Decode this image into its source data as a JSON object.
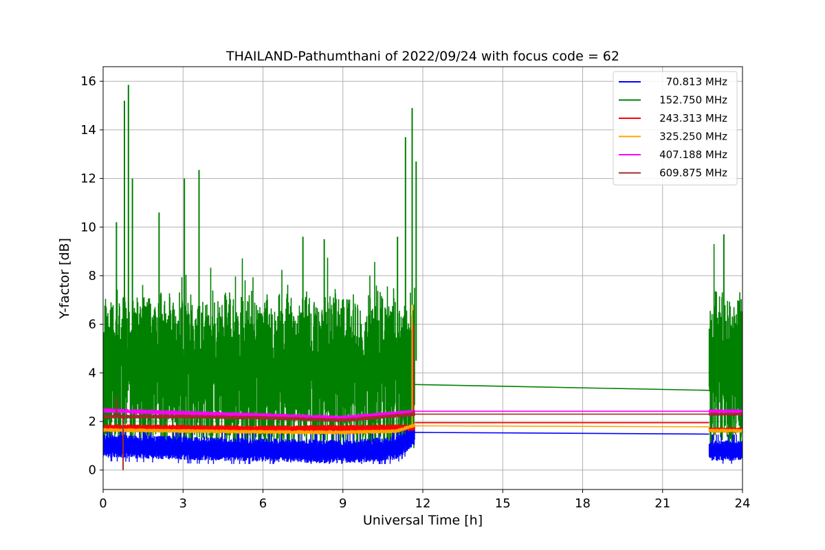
{
  "chart_data": {
    "type": "line",
    "title": "THAILAND-Pathumthani of 2022/09/24 with focus code = 62",
    "xlabel": "Universal Time [h]",
    "ylabel": "Y-factor [dB]",
    "xlim": [
      0,
      24
    ],
    "ylim": [
      -0.8,
      16.6
    ],
    "xticks": [
      0,
      3,
      6,
      9,
      12,
      15,
      18,
      21,
      24
    ],
    "yticks": [
      0,
      2,
      4,
      6,
      8,
      10,
      12,
      14,
      16
    ],
    "grid": true,
    "legend_position": "top-right",
    "series": [
      {
        "name": "70.813 MHz",
        "color": "#0000ff",
        "segments": [
          {
            "x_start": 0,
            "x_end": 11.7,
            "base": 0.95,
            "noise": 0.35,
            "spike_max": 1.8,
            "trend": [
              [
                0,
                1.0
              ],
              [
                5,
                0.85
              ],
              [
                9,
                0.75
              ],
              [
                11,
                0.9
              ],
              [
                11.7,
                1.5
              ]
            ]
          },
          {
            "x_start": 22.75,
            "x_end": 24,
            "base": 0.8,
            "noise": 0.3,
            "spike_max": 1.6,
            "trend": [
              [
                22.75,
                0.8
              ],
              [
                24,
                0.8
              ]
            ]
          }
        ],
        "gap_line": [
          [
            11.7,
            1.55
          ],
          [
            22.75,
            1.48
          ]
        ]
      },
      {
        "name": "152.750 MHz",
        "color": "#008000",
        "segments": [
          {
            "x_start": 0,
            "x_end": 11.7,
            "base": 4.2,
            "noise": 2.6,
            "spike_max": 15.85,
            "trend": [
              [
                0,
                4.8
              ],
              [
                3,
                4.4
              ],
              [
                6,
                4.3
              ],
              [
                9,
                4.2
              ],
              [
                11.7,
                4.5
              ]
            ]
          },
          {
            "x_start": 22.75,
            "x_end": 24,
            "base": 4.5,
            "noise": 2.6,
            "spike_max": 9.7,
            "trend": [
              [
                22.75,
                4.5
              ],
              [
                24,
                4.5
              ]
            ]
          }
        ],
        "gap_line": [
          [
            11.7,
            3.52
          ],
          [
            22.75,
            3.28
          ]
        ],
        "peaks": [
          [
            0.8,
            15.2
          ],
          [
            0.95,
            15.85
          ],
          [
            1.1,
            12.0
          ],
          [
            3.6,
            12.35
          ],
          [
            3.05,
            12.0
          ],
          [
            11.35,
            13.7
          ],
          [
            11.6,
            14.9
          ],
          [
            11.75,
            12.7
          ],
          [
            2.1,
            10.6
          ],
          [
            0.5,
            10.2
          ],
          [
            7.5,
            9.6
          ],
          [
            8.3,
            9.5
          ],
          [
            11.05,
            9.6
          ],
          [
            23.3,
            9.7
          ]
        ]
      },
      {
        "name": "243.313 MHz",
        "color": "#ff0000",
        "segments": [
          {
            "x_start": 0,
            "x_end": 11.7,
            "base": 1.75,
            "noise": 0.1,
            "spike_max": 2.1,
            "trend": [
              [
                0,
                1.75
              ],
              [
                6,
                1.7
              ],
              [
                11.7,
                1.75
              ]
            ]
          },
          {
            "x_start": 22.75,
            "x_end": 24,
            "base": 1.65,
            "noise": 0.08,
            "spike_max": 1.9,
            "trend": [
              [
                22.75,
                1.65
              ],
              [
                24,
                1.65
              ]
            ]
          }
        ],
        "gap_line": [
          [
            11.7,
            1.95
          ],
          [
            22.75,
            1.95
          ]
        ]
      },
      {
        "name": "325.250 MHz",
        "color": "#ffa500",
        "segments": [
          {
            "x_start": 0,
            "x_end": 11.7,
            "base": 1.62,
            "noise": 0.06,
            "spike_max": 6.8,
            "trend": [
              [
                0,
                1.65
              ],
              [
                6,
                1.57
              ],
              [
                9,
                1.55
              ],
              [
                11,
                1.6
              ],
              [
                11.7,
                1.85
              ]
            ]
          },
          {
            "x_start": 22.75,
            "x_end": 24,
            "base": 1.62,
            "noise": 0.06,
            "spike_max": 1.8,
            "trend": [
              [
                22.75,
                1.62
              ],
              [
                24,
                1.62
              ]
            ]
          }
        ],
        "gap_line": [
          [
            11.7,
            1.82
          ],
          [
            22.75,
            1.78
          ]
        ]
      },
      {
        "name": "407.188 MHz",
        "color": "#ff00ff",
        "segments": [
          {
            "x_start": 0,
            "x_end": 11.7,
            "base": 2.3,
            "noise": 0.07,
            "spike_max": 2.7,
            "trend": [
              [
                0,
                2.45
              ],
              [
                3,
                2.35
              ],
              [
                6,
                2.25
              ],
              [
                9,
                2.15
              ],
              [
                11.7,
                2.4
              ]
            ]
          },
          {
            "x_start": 22.75,
            "x_end": 24,
            "base": 2.42,
            "noise": 0.06,
            "spike_max": 2.6,
            "trend": [
              [
                22.75,
                2.42
              ],
              [
                24,
                2.42
              ]
            ]
          }
        ],
        "gap_line": [
          [
            11.7,
            2.42
          ],
          [
            22.75,
            2.42
          ]
        ]
      },
      {
        "name": "609.875 MHz",
        "color": "#a52a2a",
        "segments": [
          {
            "x_start": 0,
            "x_end": 11.7,
            "base": 2.15,
            "noise": 0.06,
            "spike_max": 6.0,
            "trend": [
              [
                0,
                2.2
              ],
              [
                3,
                2.2
              ],
              [
                6,
                2.15
              ],
              [
                9,
                2.05
              ],
              [
                11.7,
                2.3
              ]
            ]
          },
          {
            "x_start": 22.75,
            "x_end": 24,
            "base": 2.3,
            "noise": 0.05,
            "spike_max": 2.4,
            "trend": [
              [
                22.75,
                2.3
              ],
              [
                24,
                2.3
              ]
            ]
          }
        ],
        "gap_line": [
          [
            11.7,
            2.3
          ],
          [
            22.75,
            2.3
          ]
        ],
        "dips": [
          [
            0.75,
            0.0
          ]
        ]
      }
    ]
  }
}
